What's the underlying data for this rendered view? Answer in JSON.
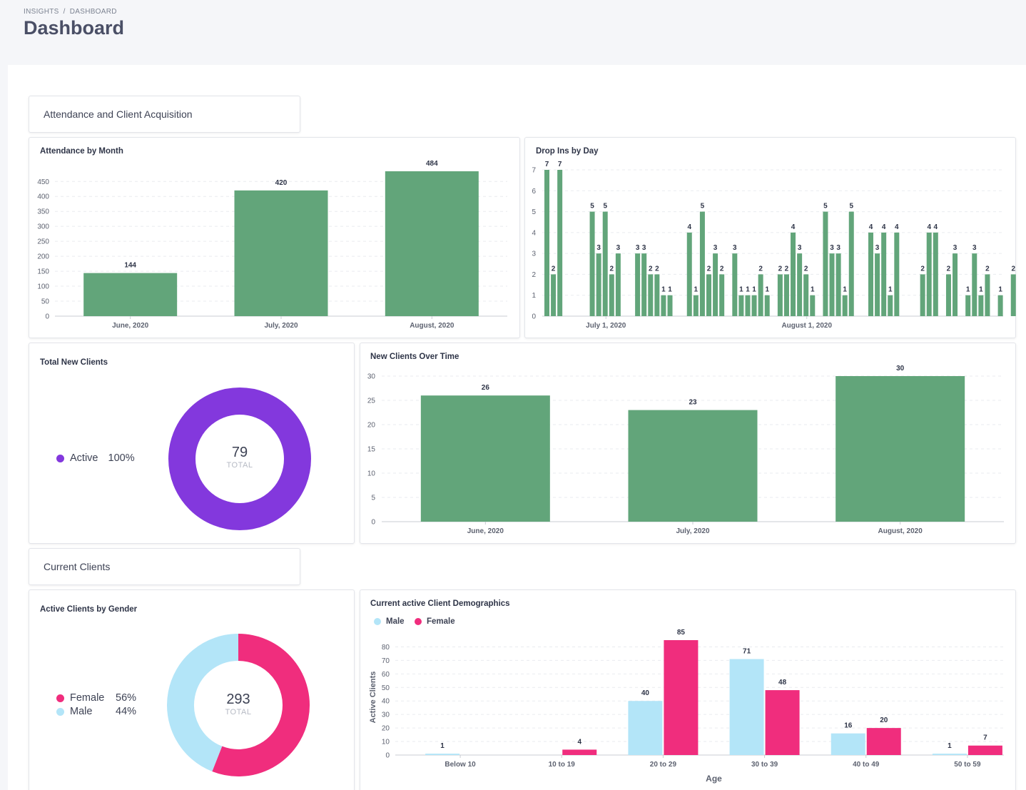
{
  "breadcrumb": [
    "INSIGHTS",
    "DASHBOARD"
  ],
  "page_title": "Dashboard",
  "sections": {
    "attendance": "Attendance and Client Acquisition",
    "current": "Current Clients"
  },
  "colors": {
    "green": "#62a57a",
    "purple": "#8338dd",
    "pink": "#f02d7d",
    "light_blue": "#b3e5f8"
  },
  "attendance_by_month": {
    "title": "Attendance by Month",
    "chart_data": {
      "type": "bar",
      "categories": [
        "June, 2020",
        "July, 2020",
        "August, 2020"
      ],
      "values": [
        144,
        420,
        484
      ],
      "ylim": [
        0,
        484
      ],
      "yticks": [
        "0",
        "50",
        "100",
        "150",
        "200",
        "250",
        "300",
        "350",
        "400",
        "450"
      ]
    }
  },
  "drop_ins": {
    "title": "Drop Ins by Day",
    "chart_data": {
      "type": "bar",
      "x_labels": [
        "July 1, 2020",
        "August 1, 2020"
      ],
      "values": [
        7,
        2,
        7,
        0,
        0,
        0,
        0,
        5,
        3,
        5,
        2,
        3,
        0,
        0,
        3,
        3,
        2,
        2,
        1,
        1,
        0,
        0,
        4,
        1,
        5,
        2,
        3,
        2,
        0,
        3,
        1,
        1,
        1,
        2,
        1,
        0,
        2,
        2,
        4,
        3,
        2,
        1,
        0,
        5,
        3,
        3,
        1,
        5,
        0,
        0,
        4,
        3,
        4,
        1,
        4,
        0,
        0,
        0,
        2,
        4,
        4,
        0,
        2,
        3,
        0,
        1,
        3,
        1,
        2,
        0,
        1,
        0,
        2
      ],
      "ylim": [
        0,
        7
      ],
      "yticks": [
        "0",
        "1",
        "2",
        "3",
        "4",
        "5",
        "6",
        "7"
      ]
    }
  },
  "total_new_clients": {
    "title": "Total New Clients",
    "total": "79",
    "total_label": "TOTAL",
    "legend": [
      {
        "label": "Active",
        "pct": "100%",
        "value": 79
      }
    ]
  },
  "new_clients_over_time": {
    "title": "New Clients Over Time",
    "chart_data": {
      "type": "bar",
      "categories": [
        "June, 2020",
        "July, 2020",
        "August, 2020"
      ],
      "values": [
        26,
        23,
        30
      ],
      "ylim": [
        0,
        30
      ],
      "yticks": [
        "0",
        "5",
        "10",
        "15",
        "20",
        "25",
        "30"
      ]
    }
  },
  "clients_by_gender": {
    "title": "Active Clients by Gender",
    "total": "293",
    "total_label": "TOTAL",
    "legend": [
      {
        "label": "Female",
        "pct": "56%",
        "value": 164
      },
      {
        "label": "Male",
        "pct": "44%",
        "value": 129
      }
    ]
  },
  "demographics": {
    "title": "Current active Client Demographics",
    "legend": [
      "Male",
      "Female"
    ],
    "chart_data": {
      "type": "bar",
      "categories": [
        "Below 10",
        "10 to 19",
        "20 to 29",
        "30 to 39",
        "40 to 49",
        "50 to 59"
      ],
      "series": [
        {
          "name": "Male",
          "values": [
            1,
            0,
            40,
            71,
            16,
            1
          ]
        },
        {
          "name": "Female",
          "values": [
            0,
            4,
            85,
            48,
            20,
            7
          ]
        }
      ],
      "xlabel": "Age",
      "ylabel": "Active Clients",
      "ylim": [
        0,
        85
      ],
      "yticks": [
        "0",
        "10",
        "20",
        "30",
        "40",
        "50",
        "60",
        "70",
        "80"
      ]
    }
  }
}
